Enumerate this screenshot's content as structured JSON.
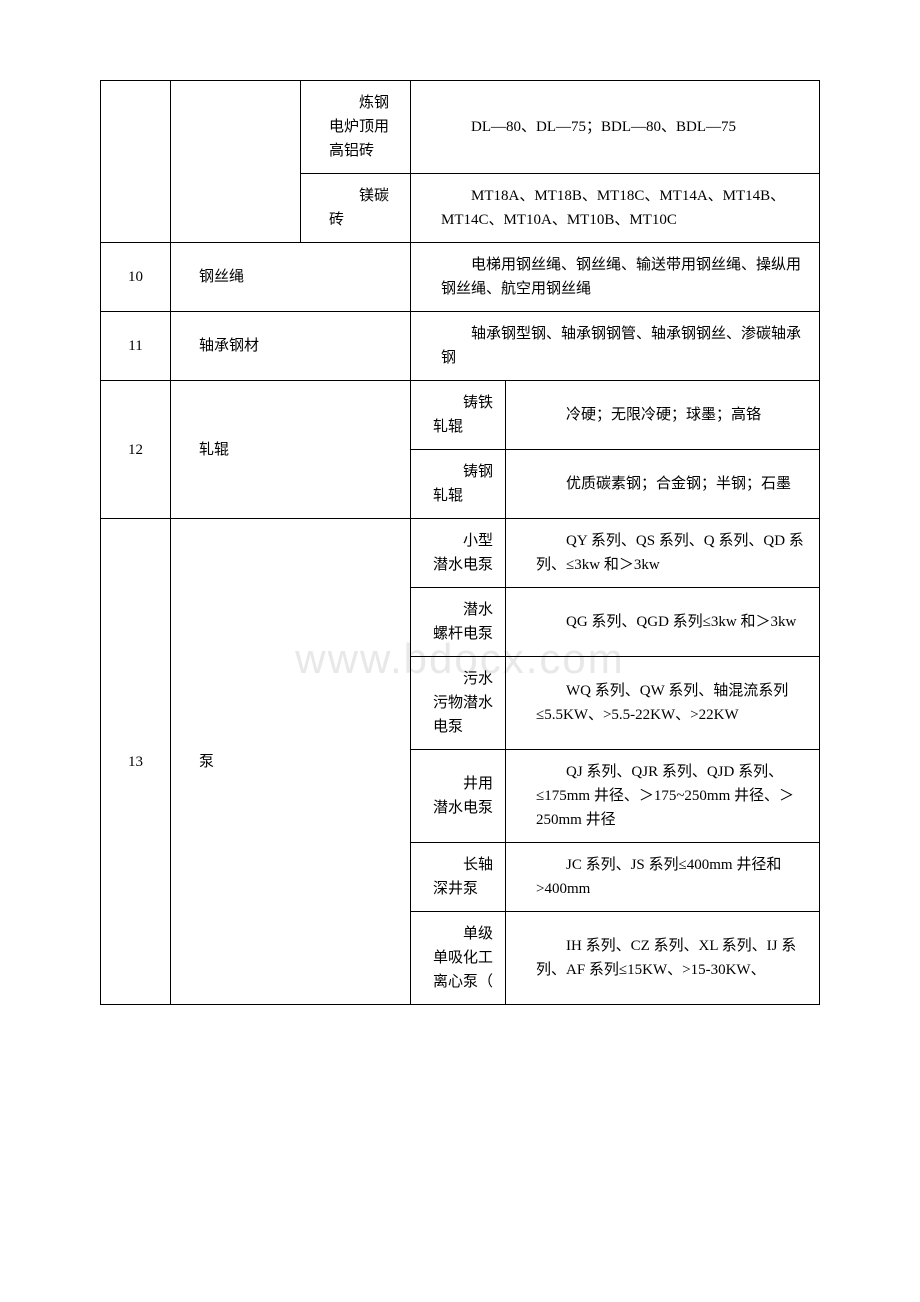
{
  "table": {
    "border_color": "#000000",
    "background_color": "#ffffff",
    "font_family": "SimSun",
    "font_size": 15,
    "rows": [
      {
        "subcat": "炼钢电炉顶用高铝砖",
        "content": "DL—80、DL—75；BDL—80、BDL—75"
      },
      {
        "subcat": "镁碳砖",
        "content": "MT18A、MT18B、MT18C、MT14A、MT14B、MT14C、MT10A、MT10B、MT10C"
      },
      {
        "num": "10",
        "cat": "钢丝绳",
        "content": "电梯用钢丝绳、钢丝绳、输送带用钢丝绳、操纵用钢丝绳、航空用钢丝绳"
      },
      {
        "num": "11",
        "cat": "轴承钢材",
        "content": "轴承钢型钢、轴承钢钢管、轴承钢钢丝、渗碳轴承钢"
      },
      {
        "num": "12",
        "cat": "轧辊",
        "sub1_label": "铸铁轧辊",
        "sub1_content": "冷硬；无限冷硬；球墨；高铬",
        "sub2_label": "铸钢轧辊",
        "sub2_content": "优质碳素钢；合金钢；半钢；石墨"
      },
      {
        "num": "13",
        "cat": "泵",
        "items": [
          {
            "label": "小型潜水电泵",
            "content": "QY 系列、QS 系列、Q 系列、QD 系列、≤3kw 和＞3kw"
          },
          {
            "label": "潜水螺杆电泵",
            "content": "QG 系列、QGD 系列≤3kw 和＞3kw"
          },
          {
            "label": "污水污物潜水电泵",
            "content": "WQ 系列、QW 系列、轴混流系列≤5.5KW、>5.5-22KW、>22KW"
          },
          {
            "label": "井用潜水电泵",
            "content": "QJ 系列、QJR 系列、QJD 系列、≤175mm 井径、＞175~250mm 井径、＞250mm 井径"
          },
          {
            "label": "长轴深井泵",
            "content": "JC 系列、JS 系列≤400mm 井径和>400mm"
          },
          {
            "label": "单级单吸化工离心泵（",
            "content": "IH 系列、CZ 系列、XL 系列、IJ 系列、AF 系列≤15KW、>15-30KW、"
          }
        ]
      }
    ]
  },
  "watermark": "www.bdocx.com"
}
